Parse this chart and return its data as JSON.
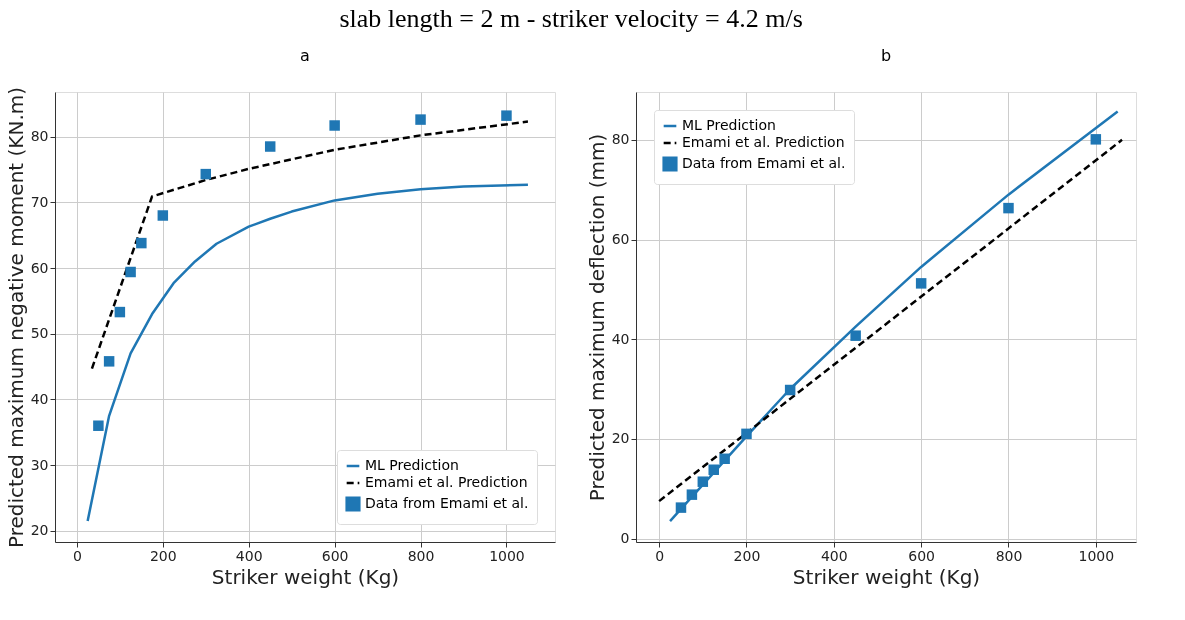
{
  "chart_data": [
    {
      "type": "line",
      "title": "slab length = 2 m - striker velocity = 4.2 m/s",
      "annotations": [
        "a"
      ],
      "xlabel": "Striker weight (Kg)",
      "ylabel": "Predicted maximum negative moment (KN.m)",
      "xlim": [
        -51,
        1113
      ],
      "ylim": [
        18.3,
        86.8
      ],
      "xticks": [
        0,
        200,
        400,
        600,
        800,
        {
          "value": 1000,
          "label": "1000"
        }
      ],
      "yticks": [
        20,
        30,
        40,
        50,
        60,
        70,
        80
      ],
      "grid": true,
      "legend": "bottom right",
      "series": [
        {
          "name": "ML Prediction",
          "type": "line",
          "color": "#1f77b4",
          "line_style": "solid",
          "marker": "none",
          "x": [
            25,
            75,
            125,
            175,
            225,
            275,
            325,
            400,
            450,
            500,
            600,
            700,
            800,
            900,
            1050
          ],
          "values": [
            21.5,
            37.5,
            47,
            53,
            57.7,
            61,
            63.7,
            66.3,
            67.5,
            68.6,
            70.3,
            71.3,
            72,
            72.4,
            72.7
          ]
        },
        {
          "name": "Emami et al. Prediction",
          "type": "line",
          "color": "#000000",
          "line_style": "dashed",
          "marker": "none",
          "x": [
            35,
            175,
            300,
            400,
            600,
            800,
            1050
          ],
          "values": [
            44.7,
            70.9,
            73.4,
            75.1,
            78,
            80.2,
            82.3
          ]
        },
        {
          "name": "Data from Emami et al.",
          "type": "scatter",
          "color": "#1f77b4",
          "marker": "square",
          "x": [
            50,
            75,
            100,
            125,
            150,
            200,
            300,
            450,
            600,
            800,
            1000
          ],
          "values": [
            36,
            45.8,
            53.3,
            59.4,
            63.8,
            68,
            74.3,
            78.5,
            81.7,
            82.6,
            83.2
          ]
        }
      ]
    },
    {
      "type": "line",
      "annotations": [
        "b"
      ],
      "xlabel": "Striker weight (Kg)",
      "ylabel": "Predicted maximum deflection (mm)",
      "xlim": [
        -53,
        1092
      ],
      "ylim": [
        -0.7,
        89.6
      ],
      "xticks": [
        0,
        200,
        400,
        600,
        800,
        {
          "value": 1000,
          "label": "1000"
        }
      ],
      "yticks": [
        0,
        20,
        40,
        60,
        80
      ],
      "grid": true,
      "legend": "top left",
      "series": [
        {
          "name": "ML Prediction",
          "type": "line",
          "color": "#1f77b4",
          "line_style": "solid",
          "marker": "none",
          "x": [
            25,
            200,
            300,
            450,
            600,
            800,
            1050
          ],
          "values": [
            3.5,
            20.5,
            30,
            42.5,
            54.5,
            69,
            85.7
          ]
        },
        {
          "name": "Emami et al. Prediction",
          "type": "line",
          "color": "#000000",
          "line_style": "dashed",
          "marker": "none",
          "x": [
            0,
            1060
          ],
          "values": [
            7.5,
            80
          ]
        },
        {
          "name": "Data from Emami et al.",
          "type": "scatter",
          "color": "#1f77b4",
          "marker": "square",
          "x": [
            50,
            75,
            100,
            125,
            150,
            200,
            300,
            450,
            600,
            800,
            1000
          ],
          "values": [
            6.2,
            8.8,
            11.4,
            13.8,
            16,
            21,
            29.8,
            40.7,
            51.2,
            66.3,
            80.1
          ]
        }
      ]
    }
  ]
}
